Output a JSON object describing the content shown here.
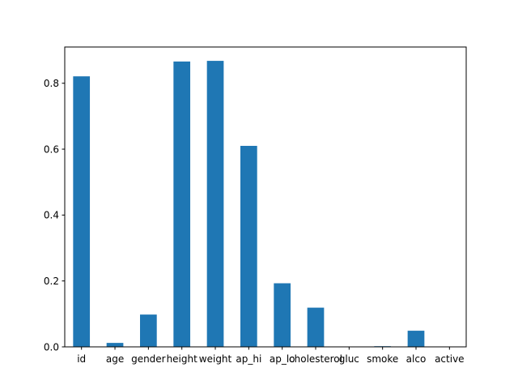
{
  "chart_data": {
    "type": "bar",
    "categories": [
      "id",
      "age",
      "gender",
      "height",
      "weight",
      "ap_hi",
      "ap_lo",
      "cholesterol",
      "gluc",
      "smoke",
      "alco",
      "active"
    ],
    "values": [
      0.821,
      0.012,
      0.098,
      0.866,
      0.868,
      0.61,
      0.193,
      0.119,
      0.0,
      0.002,
      0.049,
      0.0
    ],
    "title": "",
    "xlabel": "",
    "ylabel": "",
    "ylim": [
      0,
      0.91
    ],
    "yticks": [
      0.0,
      0.2,
      0.4,
      0.6,
      0.8
    ],
    "ytick_labels": [
      "0.0",
      "0.2",
      "0.4",
      "0.6",
      "0.8"
    ],
    "bar_color": "#1f77b4",
    "grid": false,
    "legend": "none"
  }
}
